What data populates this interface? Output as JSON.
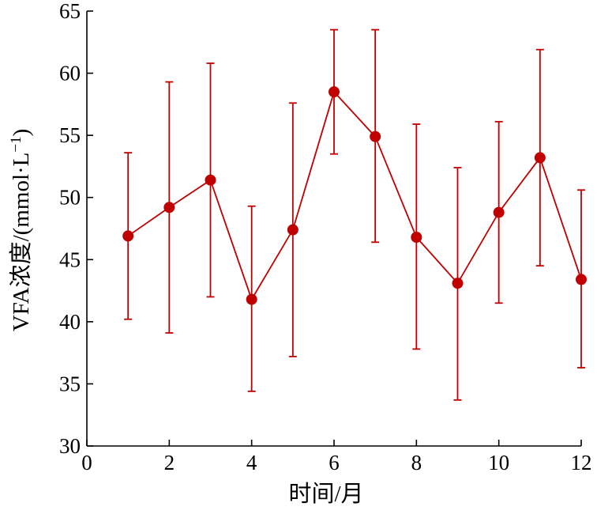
{
  "chart_data": {
    "type": "line",
    "xlabel": "时间/月",
    "ylabel_main": "VFA浓度/(mmol·L",
    "ylabel_sup": "−1",
    "ylabel_close": ")",
    "xlim": [
      0,
      12
    ],
    "ylim": [
      30,
      65
    ],
    "xticks": [
      0,
      2,
      4,
      6,
      8,
      10,
      12
    ],
    "yticks": [
      30,
      35,
      40,
      45,
      50,
      55,
      60,
      65
    ],
    "grid": false,
    "series_color": "#c00000",
    "series": [
      {
        "x": [
          1,
          2,
          3,
          4,
          5,
          6,
          7,
          8,
          9,
          10,
          11,
          12
        ],
        "y": [
          46.9,
          49.2,
          51.4,
          41.8,
          47.4,
          58.5,
          54.9,
          46.8,
          43.1,
          48.8,
          53.2,
          43.4
        ],
        "err_low": [
          40.2,
          39.1,
          42.0,
          34.4,
          37.2,
          53.5,
          46.4,
          37.8,
          33.7,
          41.5,
          44.5,
          36.3
        ],
        "err_high": [
          53.6,
          59.3,
          60.8,
          49.3,
          57.6,
          63.5,
          63.5,
          55.9,
          52.4,
          56.1,
          61.9,
          50.6
        ]
      }
    ]
  }
}
